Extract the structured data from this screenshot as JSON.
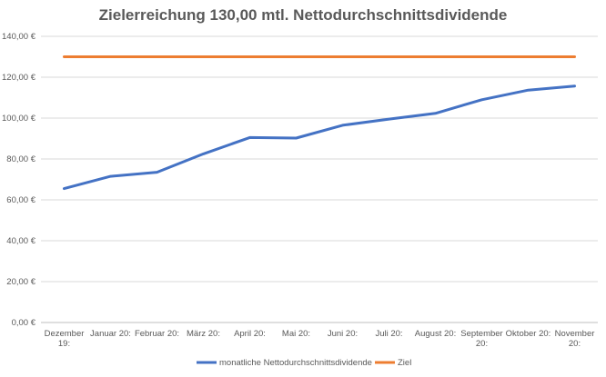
{
  "chart_data": {
    "type": "line",
    "title": "Zielerreichung 130,00 mtl. Nettodurchschnittsdividende",
    "xlabel": "",
    "ylabel": "",
    "ylim": [
      0,
      140
    ],
    "y_ticks": [
      "0,00 €",
      "20,00 €",
      "40,00 €",
      "60,00 €",
      "80,00 €",
      "100,00 €",
      "120,00 €",
      "140,00 €"
    ],
    "categories": [
      [
        "Dezember",
        "19:"
      ],
      [
        "Januar 20:"
      ],
      [
        "Februar 20:"
      ],
      [
        "März 20:"
      ],
      [
        "April 20:"
      ],
      [
        "Mai 20:"
      ],
      [
        "Juni 20:"
      ],
      [
        "Juli 20:"
      ],
      [
        "August 20:"
      ],
      [
        "September",
        "20:"
      ],
      [
        "Oktober 20:"
      ],
      [
        "November",
        "20:"
      ]
    ],
    "grid": "horizontal",
    "legend_position": "bottom",
    "series": [
      {
        "name": "monatliche Nettodurchschnittsdividende",
        "color": "#4472C4",
        "values": [
          65.5,
          71.5,
          73.5,
          82.5,
          90.5,
          90.2,
          96.5,
          99.5,
          102.3,
          109,
          113.7,
          115.7
        ]
      },
      {
        "name": "Ziel",
        "color": "#ED7D31",
        "values": [
          130,
          130,
          130,
          130,
          130,
          130,
          130,
          130,
          130,
          130,
          130,
          130
        ]
      }
    ]
  }
}
